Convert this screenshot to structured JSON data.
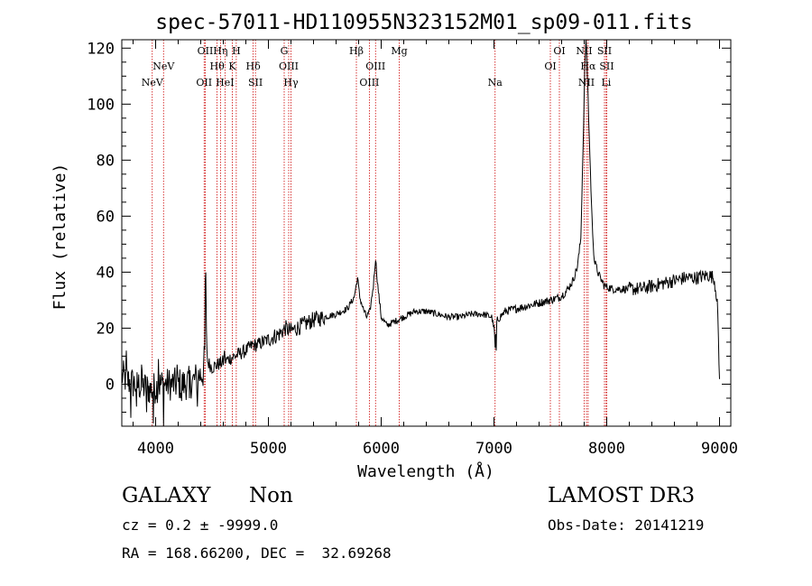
{
  "chart_data": {
    "type": "line",
    "title": "spec-57011-HD110955N323152M01_sp09-011.fits",
    "xlabel": "Wavelength (Å)",
    "ylabel": "Flux (relative)",
    "xlim": [
      3700,
      9100
    ],
    "ylim": [
      -15,
      123
    ],
    "xticks": [
      4000,
      5000,
      6000,
      7000,
      8000,
      9000
    ],
    "yticks": [
      0,
      20,
      40,
      60,
      80,
      100,
      120
    ],
    "grid": false,
    "line_color": "#000000",
    "marker_color": "#cc0000",
    "series": [
      {
        "name": "spectrum",
        "anchors": [
          [
            3700,
            3
          ],
          [
            3760,
            1
          ],
          [
            3820,
            0
          ],
          [
            3900,
            -1
          ],
          [
            3960,
            -2
          ],
          [
            4050,
            0
          ],
          [
            4150,
            0
          ],
          [
            4250,
            0
          ],
          [
            4330,
            1
          ],
          [
            4380,
            3
          ],
          [
            4420,
            4
          ],
          [
            4440,
            12
          ],
          [
            4445,
            36
          ],
          [
            4450,
            18
          ],
          [
            4460,
            8
          ],
          [
            4500,
            6
          ],
          [
            4550,
            7
          ],
          [
            4600,
            8
          ],
          [
            4700,
            10
          ],
          [
            4800,
            12
          ],
          [
            4860,
            14
          ],
          [
            4900,
            14
          ],
          [
            5000,
            16
          ],
          [
            5100,
            18
          ],
          [
            5150,
            20
          ],
          [
            5200,
            19
          ],
          [
            5300,
            21
          ],
          [
            5400,
            23
          ],
          [
            5500,
            24
          ],
          [
            5600,
            25
          ],
          [
            5700,
            27
          ],
          [
            5760,
            31
          ],
          [
            5790,
            38
          ],
          [
            5810,
            31
          ],
          [
            5840,
            27
          ],
          [
            5870,
            24
          ],
          [
            5900,
            26
          ],
          [
            5930,
            35
          ],
          [
            5950,
            45
          ],
          [
            5970,
            35
          ],
          [
            6000,
            24
          ],
          [
            6050,
            21
          ],
          [
            6100,
            22
          ],
          [
            6200,
            24
          ],
          [
            6300,
            26
          ],
          [
            6400,
            26
          ],
          [
            6500,
            25
          ],
          [
            6600,
            24
          ],
          [
            6700,
            24
          ],
          [
            6800,
            25
          ],
          [
            6900,
            25
          ],
          [
            6980,
            24
          ],
          [
            7000,
            20
          ],
          [
            7010,
            15
          ],
          [
            7030,
            23
          ],
          [
            7100,
            26
          ],
          [
            7200,
            27
          ],
          [
            7300,
            28
          ],
          [
            7400,
            29
          ],
          [
            7500,
            30
          ],
          [
            7580,
            31
          ],
          [
            7640,
            33
          ],
          [
            7700,
            37
          ],
          [
            7740,
            42
          ],
          [
            7770,
            52
          ],
          [
            7790,
            85
          ],
          [
            7805,
            112
          ],
          [
            7815,
            125
          ],
          [
            7830,
            108
          ],
          [
            7850,
            82
          ],
          [
            7870,
            58
          ],
          [
            7890,
            44
          ],
          [
            7930,
            39
          ],
          [
            7980,
            35
          ],
          [
            8050,
            34
          ],
          [
            8200,
            34
          ],
          [
            8300,
            34
          ],
          [
            8400,
            35
          ],
          [
            8500,
            36
          ],
          [
            8600,
            37
          ],
          [
            8700,
            38
          ],
          [
            8800,
            38
          ],
          [
            8900,
            39
          ],
          [
            8950,
            38
          ],
          [
            8980,
            30
          ],
          [
            9000,
            1
          ]
        ],
        "spikes": [
          [
            3740,
            12
          ],
          [
            3780,
            -12
          ],
          [
            3830,
            -8
          ],
          [
            3875,
            7
          ],
          [
            3920,
            -10
          ],
          [
            3980,
            -14
          ],
          [
            4025,
            9
          ],
          [
            4070,
            -15
          ],
          [
            4120,
            5
          ],
          [
            4190,
            7
          ],
          [
            4230,
            -6
          ],
          [
            4300,
            -5
          ],
          [
            4370,
            -8
          ],
          [
            4440,
            37
          ],
          [
            4610,
            12
          ],
          [
            7010,
            13
          ],
          [
            7020,
            12
          ]
        ]
      }
    ],
    "lines": [
      {
        "label": "NeV",
        "wavelength": 3970,
        "row": 2
      },
      {
        "label": "NeV",
        "wavelength": 4070,
        "row": 1
      },
      {
        "label": "OII",
        "wavelength": 4430,
        "row": 2
      },
      {
        "label": "OII",
        "wavelength": 4440,
        "row": 0
      },
      {
        "label": "Hθ",
        "wavelength": 4545,
        "row": 1
      },
      {
        "label": "Hη",
        "wavelength": 4575,
        "row": 0
      },
      {
        "label": "HeI",
        "wavelength": 4615,
        "row": 2
      },
      {
        "label": "K",
        "wavelength": 4680,
        "row": 1
      },
      {
        "label": "H",
        "wavelength": 4715,
        "row": 0
      },
      {
        "label": "Hδ",
        "wavelength": 4865,
        "row": 1
      },
      {
        "label": "SII",
        "wavelength": 4885,
        "row": 2
      },
      {
        "label": "G",
        "wavelength": 5140,
        "row": 0
      },
      {
        "label": "OIII",
        "wavelength": 5180,
        "row": 1
      },
      {
        "label": "Hγ",
        "wavelength": 5200,
        "row": 2
      },
      {
        "label": "Hβ",
        "wavelength": 5780,
        "row": 0
      },
      {
        "label": "OIII",
        "wavelength": 5895,
        "row": 2
      },
      {
        "label": "OIII",
        "wavelength": 5950,
        "row": 1
      },
      {
        "label": "Mg",
        "wavelength": 6160,
        "row": 0
      },
      {
        "label": "Na",
        "wavelength": 7010,
        "row": 2
      },
      {
        "label": "OI",
        "wavelength": 7500,
        "row": 1
      },
      {
        "label": "OI",
        "wavelength": 7580,
        "row": 0
      },
      {
        "label": "NII",
        "wavelength": 7800,
        "row": 0
      },
      {
        "label": "NII",
        "wavelength": 7820,
        "row": 2
      },
      {
        "label": "Hα",
        "wavelength": 7835,
        "row": 1
      },
      {
        "label": "SII",
        "wavelength": 7980,
        "row": 0
      },
      {
        "label": "SII",
        "wavelength": 8000,
        "row": 1
      },
      {
        "label": "Li",
        "wavelength": 7995,
        "row": 2
      }
    ]
  },
  "info": {
    "class": "GALAXY",
    "subclass": "Non",
    "redshift": "cz = 0.2 ± -9999.0",
    "coords": "RA = 168.66200, DEC =  32.69268",
    "survey": "LAMOST DR3",
    "obs_date": "Obs-Date: 20141219"
  }
}
